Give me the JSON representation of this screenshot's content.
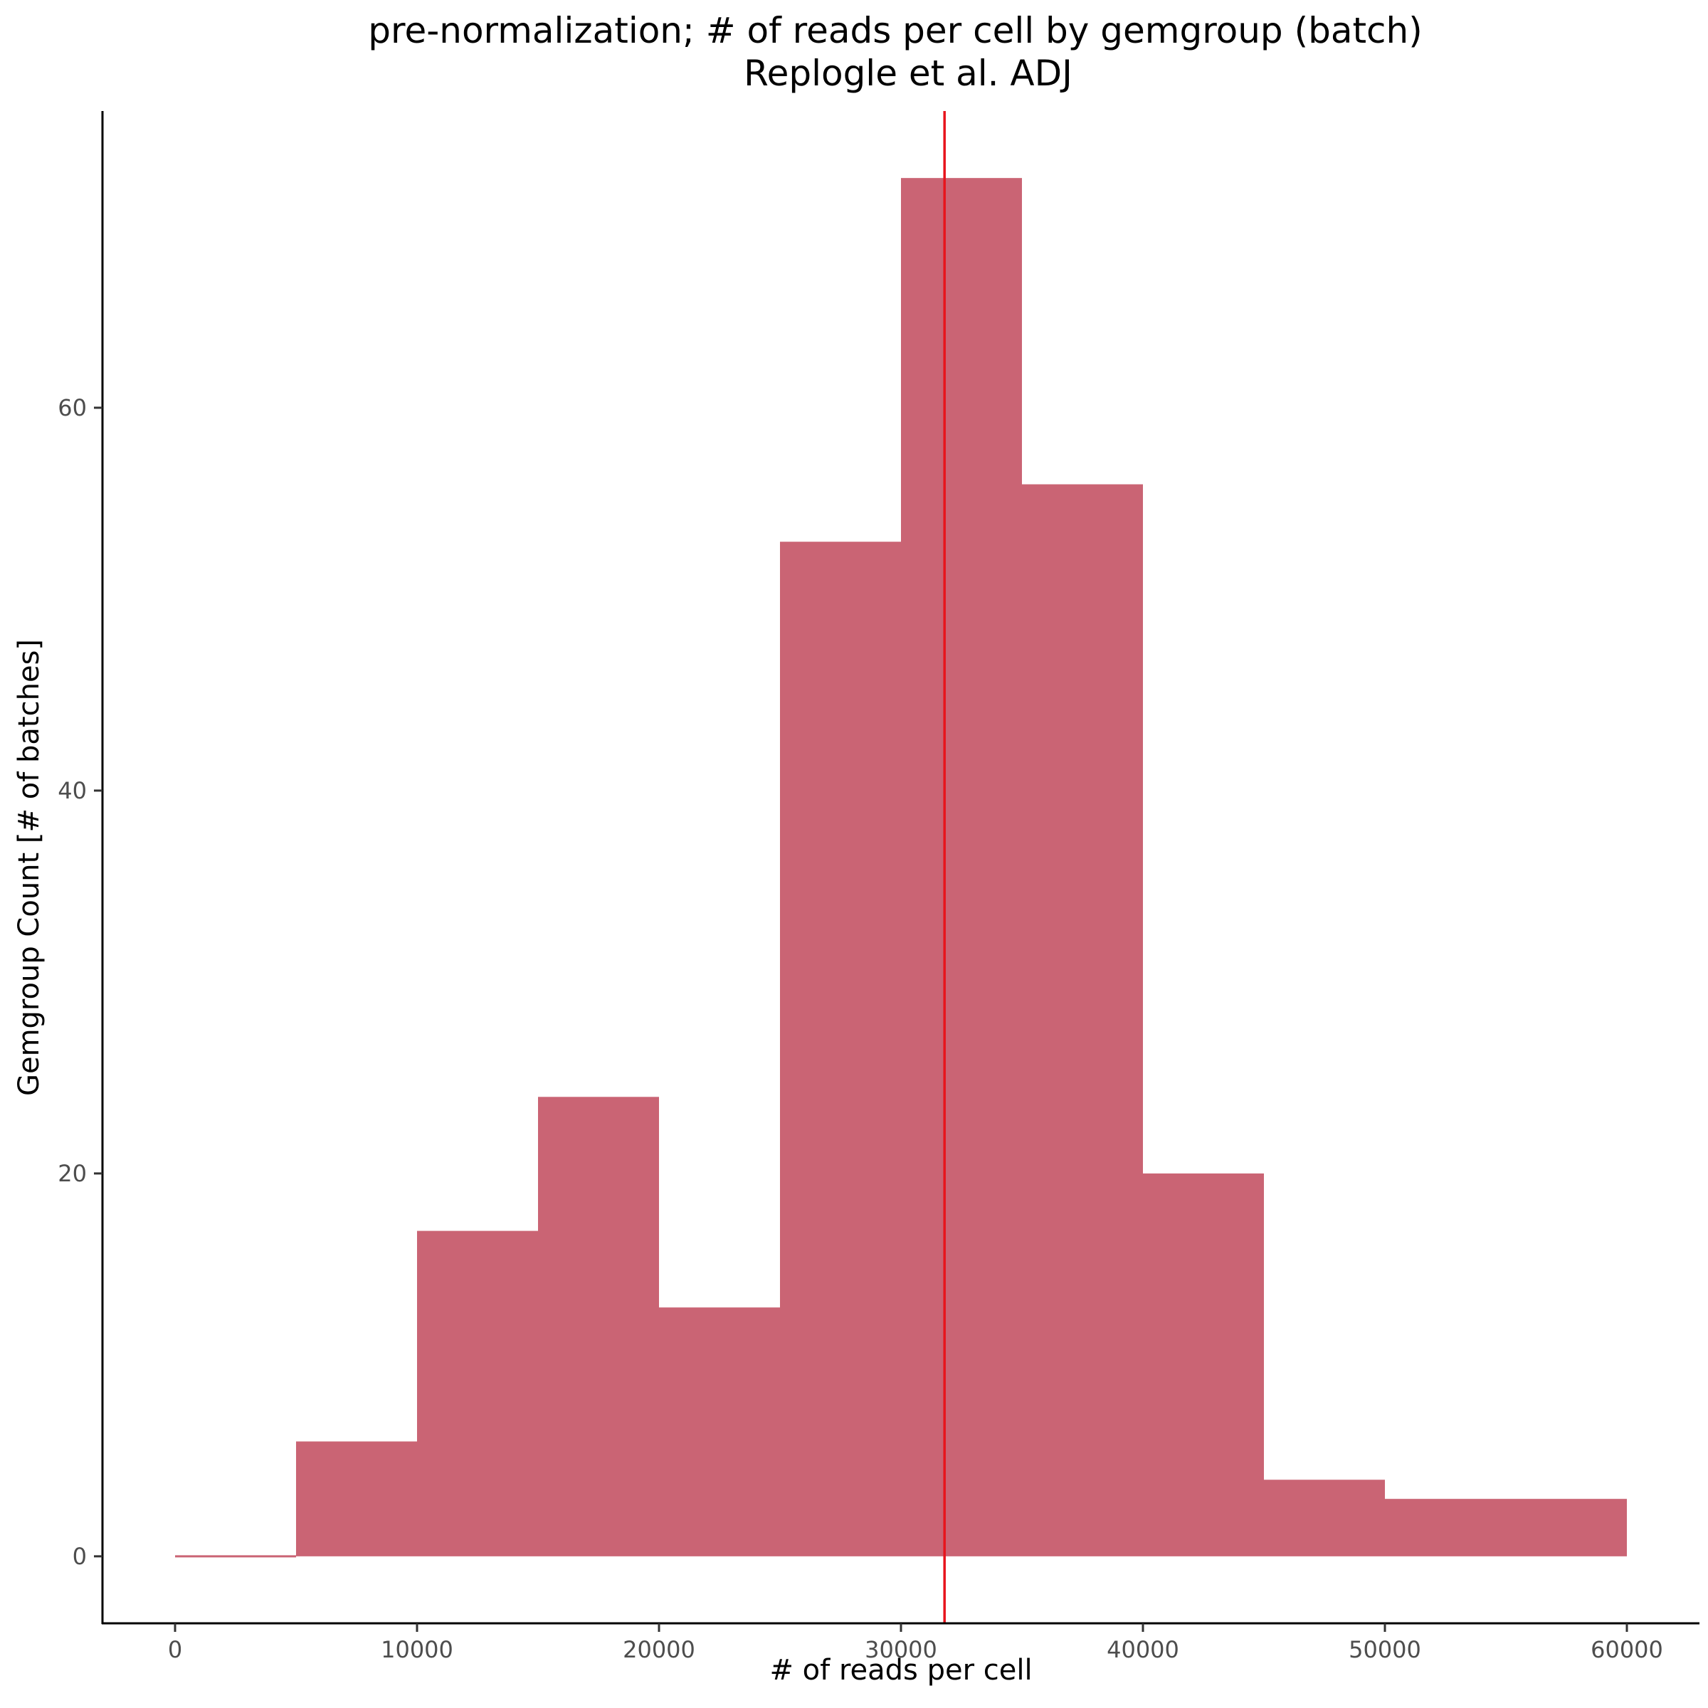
{
  "chart_data": {
    "type": "bar",
    "title": "pre-normalization; # of reads per cell by gemgroup (batch)",
    "subtitle": "Replogle et al. ADJ",
    "xlabel": "# of reads per cell",
    "ylabel": "Gemgroup Count [# of batches]",
    "x_ticks": [
      0,
      10000,
      20000,
      30000,
      40000,
      50000,
      60000
    ],
    "x_tick_labels": [
      "0",
      "10000",
      "20000",
      "30000",
      "40000",
      "50000",
      "60000"
    ],
    "y_ticks": [
      0,
      20,
      40,
      60
    ],
    "y_tick_labels": [
      "0",
      "20",
      "40",
      "60"
    ],
    "xlim": [
      -3000,
      63000
    ],
    "ylim": [
      -3.5,
      75.5
    ],
    "bins": [
      {
        "x_start": 0,
        "x_end": 5000,
        "count": 0
      },
      {
        "x_start": 5000,
        "x_end": 10000,
        "count": 6
      },
      {
        "x_start": 10000,
        "x_end": 15000,
        "count": 17
      },
      {
        "x_start": 15000,
        "x_end": 20000,
        "count": 24
      },
      {
        "x_start": 20000,
        "x_end": 25000,
        "count": 13
      },
      {
        "x_start": 25000,
        "x_end": 30000,
        "count": 53
      },
      {
        "x_start": 30000,
        "x_end": 35000,
        "count": 72
      },
      {
        "x_start": 35000,
        "x_end": 40000,
        "count": 56
      },
      {
        "x_start": 40000,
        "x_end": 45000,
        "count": 20
      },
      {
        "x_start": 45000,
        "x_end": 50000,
        "count": 4
      },
      {
        "x_start": 50000,
        "x_end": 55000,
        "count": 3
      },
      {
        "x_start": 55000,
        "x_end": 60000,
        "count": 3
      }
    ],
    "vline": {
      "x": 31800,
      "color": "#e8141c"
    },
    "bar_color": "#ca6474",
    "grid": false,
    "legend": "none"
  }
}
